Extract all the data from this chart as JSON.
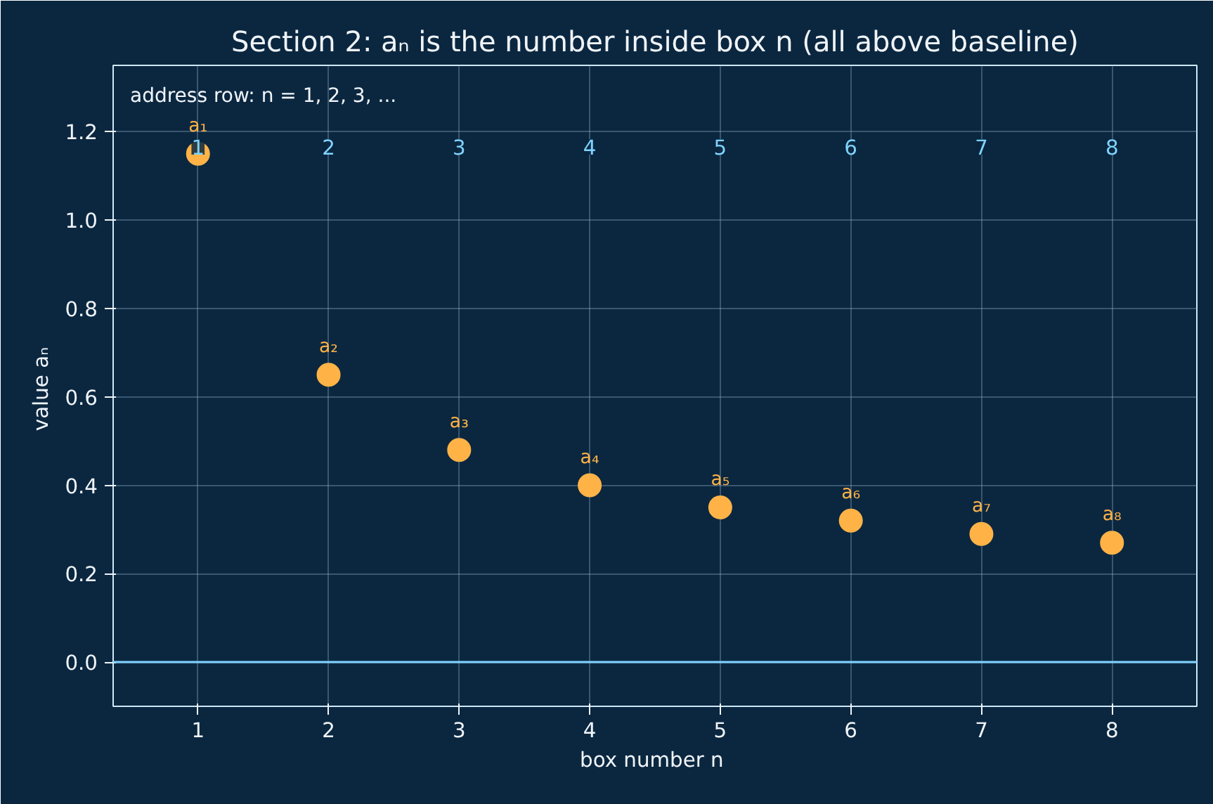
{
  "chart_data": {
    "type": "scatter",
    "title": "Section 2: aₙ is the number inside box n (all above baseline)",
    "xlabel": "box number  n",
    "ylabel": "value  aₙ",
    "x": [
      1,
      2,
      3,
      4,
      5,
      6,
      7,
      8
    ],
    "series": [
      {
        "color": "#ffb347",
        "values": [
          1.15,
          0.65,
          0.48,
          0.4,
          0.35,
          0.32,
          0.29,
          0.27
        ],
        "value_labels": [
          "a₁",
          "a₂",
          "a₃",
          "a₄",
          "a₅",
          "a₆",
          "a₇",
          "a₈"
        ]
      }
    ],
    "marker": "circle",
    "xlim": [
      0.35,
      8.65
    ],
    "ylim": [
      -0.1,
      1.35
    ],
    "xticks": [
      1,
      2,
      3,
      4,
      5,
      6,
      7,
      8
    ],
    "yticks": [
      {
        "value": 0,
        "label": "0.0"
      },
      0.2,
      0.4,
      0.6,
      0.8,
      {
        "value": 1,
        "label": "1.0"
      },
      1.2
    ],
    "grid": true,
    "ref_lines": [
      {
        "axis": "y",
        "value": 0,
        "color": "#7fd3ff"
      }
    ],
    "annotations": [
      "address row:  n = 1, 2, 3, ...",
      "1",
      "2",
      "3",
      "4",
      "5",
      "6",
      "7",
      "8"
    ]
  }
}
